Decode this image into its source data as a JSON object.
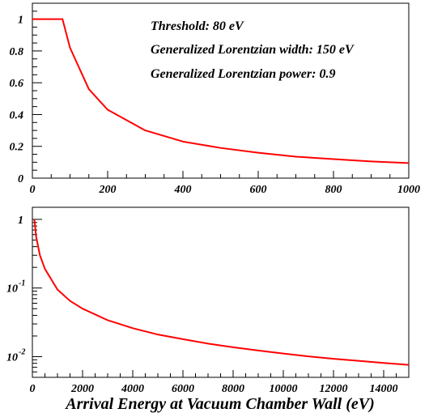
{
  "chart_data": [
    {
      "type": "line",
      "xlabel": "",
      "ylabel": "",
      "xlim": [
        0,
        1000
      ],
      "ylim": [
        0,
        1.1
      ],
      "y_scale": "linear",
      "grid": false,
      "legend": "none",
      "x_tick_labels": [
        "0",
        "200",
        "400",
        "600",
        "800",
        "1000"
      ],
      "y_tick_labels": [
        "0",
        "0.2",
        "0.4",
        "0.6",
        "0.8",
        "1"
      ],
      "annotations": [
        "Threshold: 80 eV",
        "Generalized Lorentzian width: 150 eV",
        "Generalized Lorentzian power: 0.9"
      ],
      "series": [
        {
          "color": "#ff0000",
          "x": [
            0,
            80,
            100,
            150,
            200,
            300,
            400,
            500,
            600,
            700,
            800,
            900,
            1000
          ],
          "values": [
            1.0,
            1.0,
            0.82,
            0.56,
            0.43,
            0.3,
            0.23,
            0.19,
            0.16,
            0.135,
            0.12,
            0.105,
            0.095
          ]
        }
      ]
    },
    {
      "type": "line",
      "xlabel": "Arrival Energy at Vacuum Chamber Wall (eV)",
      "ylabel": "",
      "xlim": [
        0,
        15000
      ],
      "ylim": [
        0.005,
        1.5
      ],
      "y_scale": "log",
      "grid": false,
      "legend": "none",
      "x_tick_labels": [
        "0",
        "2000",
        "4000",
        "6000",
        "8000",
        "10000",
        "12000",
        "14000"
      ],
      "y_tick_labels": [
        {
          "base": "1",
          "exp": ""
        },
        {
          "base": "10",
          "exp": "-1"
        },
        {
          "base": "10",
          "exp": "-2"
        }
      ],
      "series": [
        {
          "color": "#ff0000",
          "x": [
            80,
            150,
            300,
            500,
            1000,
            1500,
            2000,
            3000,
            4000,
            5000,
            6000,
            7000,
            8000,
            9000,
            10000,
            11000,
            12000,
            13000,
            14000,
            15000
          ],
          "values": [
            1.0,
            0.56,
            0.3,
            0.19,
            0.095,
            0.065,
            0.05,
            0.034,
            0.026,
            0.021,
            0.018,
            0.0155,
            0.0137,
            0.0123,
            0.0111,
            0.0101,
            0.0093,
            0.0087,
            0.0081,
            0.0076
          ]
        }
      ]
    }
  ]
}
